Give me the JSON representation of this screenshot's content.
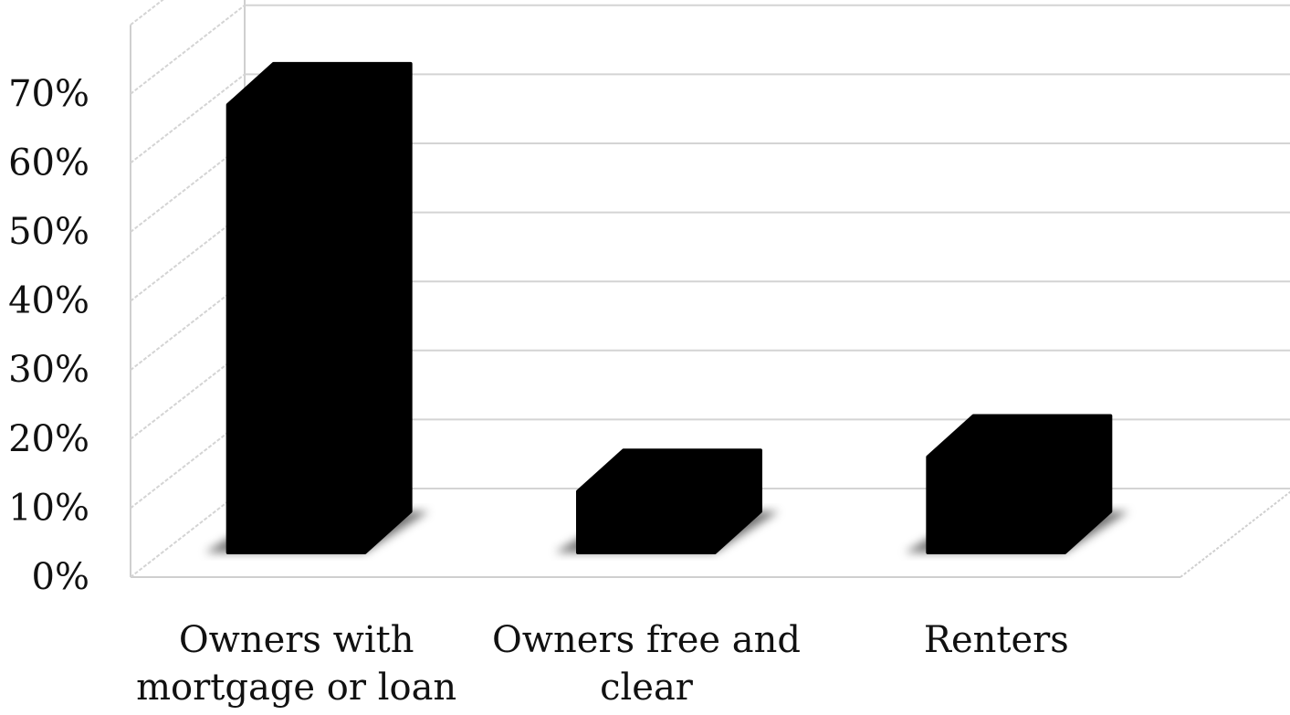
{
  "chart_data": {
    "type": "bar",
    "style": "3d-bar",
    "categories": [
      "Owners with\nmortgage or loan",
      "Owners free and\nclear",
      "Renters"
    ],
    "values": [
      68,
      12,
      17
    ],
    "yticks": [
      "0%",
      "10%",
      "20%",
      "30%",
      "40%",
      "50%",
      "60%",
      "70%"
    ],
    "ylim": [
      0,
      80
    ],
    "grid": true,
    "legend": "none",
    "colors": {
      "bar": "#000000",
      "gridline": "#d4d4d4",
      "floor": "#cfcfcf",
      "text": "#111111"
    }
  }
}
